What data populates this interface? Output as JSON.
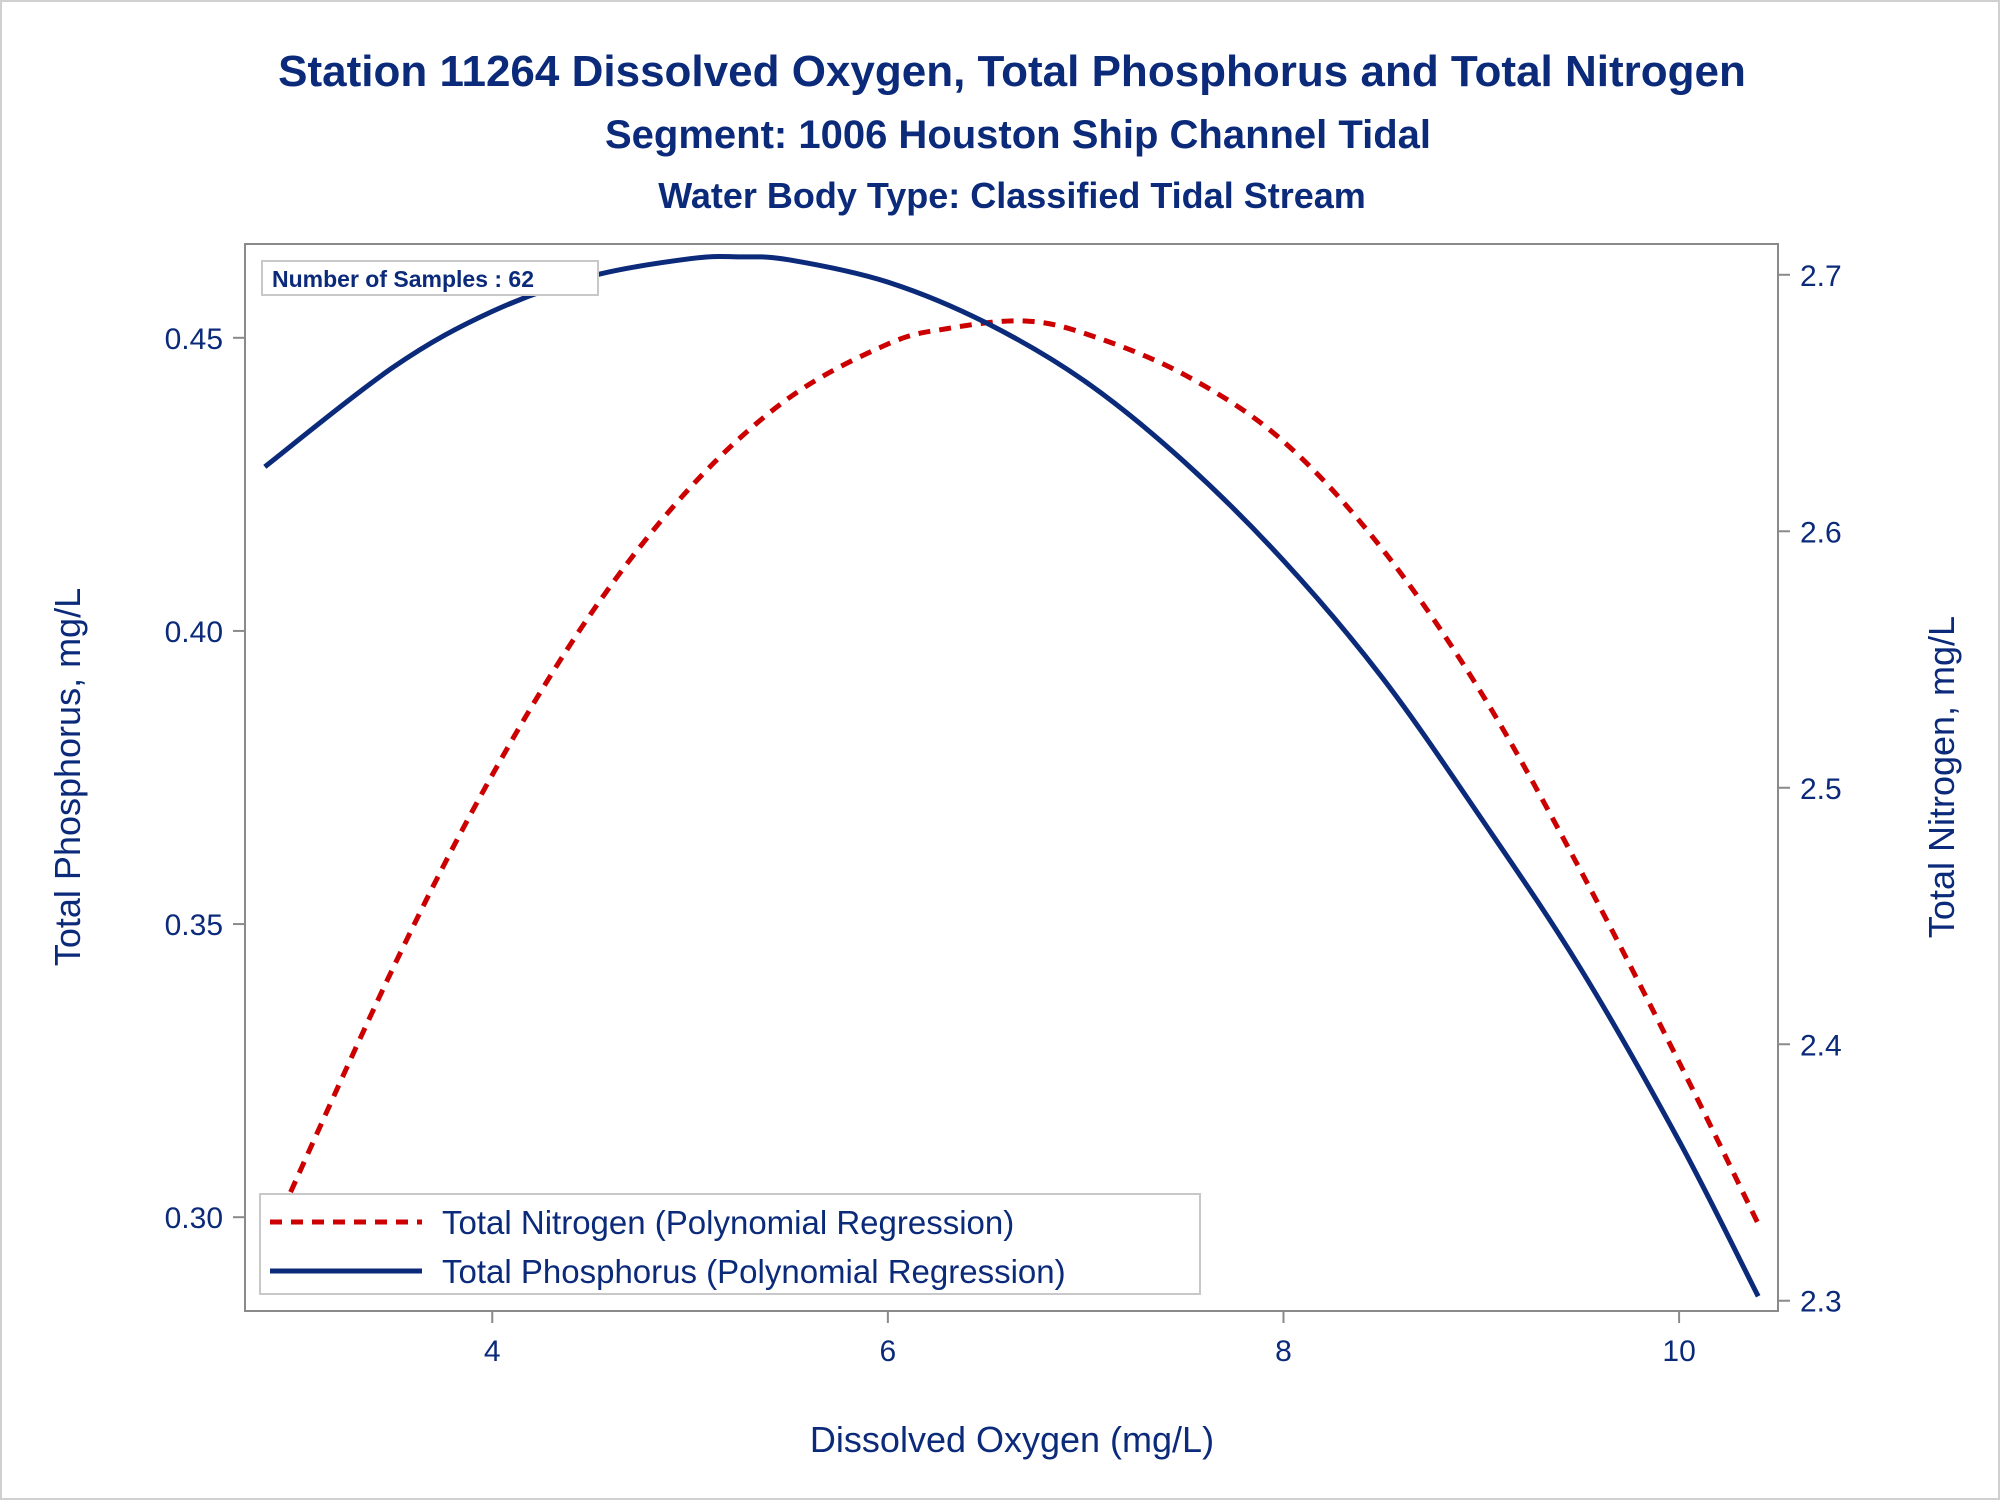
{
  "chart_data": {
    "type": "line",
    "title": "Station 11264  Dissolved Oxygen, Total Phosphorus and Total Nitrogen",
    "subtitle": "Segment: 1006  Houston Ship Channel Tidal",
    "subtitle2": "Water Body Type: Classified Tidal Stream",
    "xlabel": "Dissolved Oxygen (mg/L)",
    "ylabel_left": "Total Phosphorus, mg/L",
    "ylabel_right": "Total Nitrogen, mg/L",
    "xlim": [
      2.75,
      10.5
    ],
    "ylim_left": [
      0.284,
      0.466
    ],
    "ylim_right": [
      2.296,
      2.712
    ],
    "x_ticks": [
      "4",
      "6",
      "8",
      "10"
    ],
    "y_left_ticks": [
      "0.30",
      "0.35",
      "0.40",
      "0.45"
    ],
    "y_right_ticks": [
      "2.3",
      "2.4",
      "2.5",
      "2.6",
      "2.7"
    ],
    "grid": false,
    "legend_position": "bottom-left",
    "inset_label": "Number of Samples : 62",
    "series": [
      {
        "name": "Total Nitrogen (Polynomial Regression)",
        "axis": "right",
        "style": "dashed",
        "color": "#cc0000",
        "x": [
          2.85,
          3.5,
          4.0,
          4.5,
          5.0,
          5.5,
          6.0,
          6.3,
          6.68,
          7.0,
          7.5,
          8.0,
          8.5,
          9.0,
          9.5,
          10.0,
          10.4
        ],
        "values": [
          2.32,
          2.43,
          2.505,
          2.568,
          2.617,
          2.652,
          2.673,
          2.679,
          2.682,
          2.677,
          2.661,
          2.635,
          2.593,
          2.537,
          2.468,
          2.393,
          2.33
        ]
      },
      {
        "name": "Total Phosphorus (Polynomial Regression)",
        "axis": "left",
        "style": "solid",
        "color": "#0b2a7a",
        "x": [
          2.85,
          3.5,
          4.0,
          4.5,
          5.0,
          5.25,
          5.5,
          6.0,
          6.5,
          7.0,
          7.5,
          8.0,
          8.5,
          9.0,
          9.5,
          10.0,
          10.4
        ],
        "values": [
          0.428,
          0.445,
          0.4545,
          0.4605,
          0.4635,
          0.4638,
          0.4633,
          0.4595,
          0.4525,
          0.4425,
          0.4288,
          0.412,
          0.392,
          0.368,
          0.3425,
          0.313,
          0.2865
        ]
      }
    ]
  }
}
